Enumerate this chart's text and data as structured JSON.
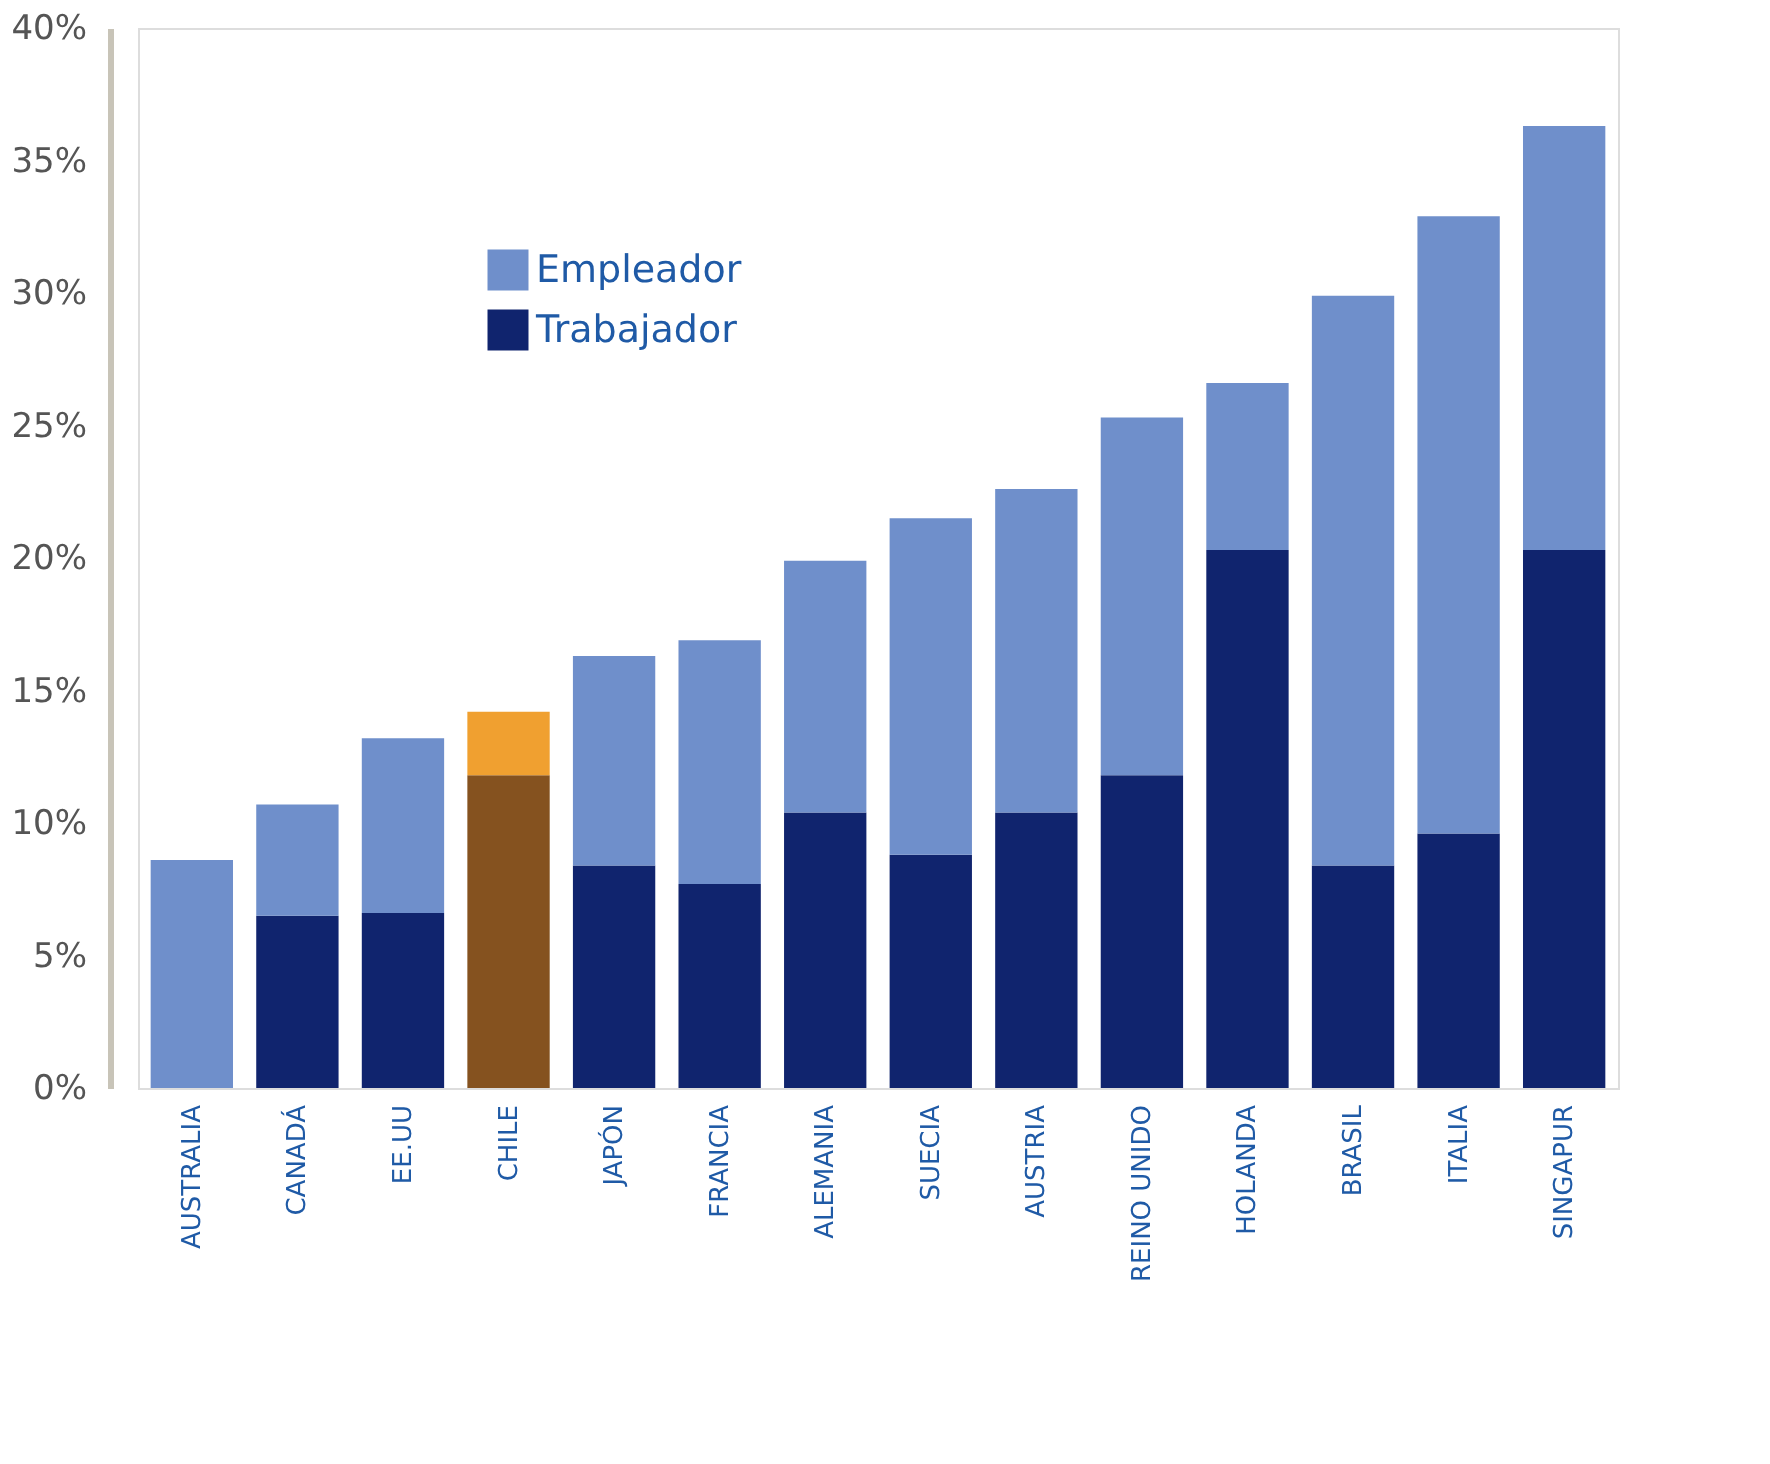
{
  "chart_data": {
    "type": "bar",
    "stacked": true,
    "categories": [
      "AUSTRALIA",
      "CANADÁ",
      "EE.UU",
      "CHILE",
      "JAPÓN",
      "FRANCIA",
      "ALEMANIA",
      "SUECIA",
      "AUSTRIA",
      "REINO UNIDO",
      "HOLANDA",
      "BRASIL",
      "ITALIA",
      "SINGAPUR"
    ],
    "series": [
      {
        "name": "Trabajador",
        "color": "#10246e",
        "colors": [
          "#10246e",
          "#10246e",
          "#10246e",
          "#85521f",
          "#10246e",
          "#10246e",
          "#10246e",
          "#10246e",
          "#10246e",
          "#10246e",
          "#10246e",
          "#10246e",
          "#10246e",
          "#10246e"
        ],
        "values": [
          0,
          6.5,
          6.6,
          11.8,
          8.4,
          7.7,
          10.4,
          8.8,
          10.4,
          11.8,
          20.3,
          8.4,
          9.6,
          20.3
        ]
      },
      {
        "name": "Empleador",
        "color": "#6f8fcb",
        "colors": [
          "#6f8fcb",
          "#6f8fcb",
          "#6f8fcb",
          "#f0a030",
          "#6f8fcb",
          "#6f8fcb",
          "#6f8fcb",
          "#6f8fcb",
          "#6f8fcb",
          "#6f8fcb",
          "#6f8fcb",
          "#6f8fcb",
          "#6f8fcb",
          "#6f8fcb"
        ],
        "values": [
          8.6,
          4.2,
          6.6,
          2.4,
          7.9,
          9.2,
          9.5,
          12.7,
          12.2,
          13.5,
          6.3,
          21.5,
          23.3,
          16.0
        ]
      }
    ],
    "ylim": [
      0,
      40
    ],
    "yticks": [
      {
        "value": 0,
        "label": "0%"
      },
      {
        "value": 5,
        "label": "5%"
      },
      {
        "value": 10,
        "label": "10%"
      },
      {
        "value": 15,
        "label": "15%"
      },
      {
        "value": 20,
        "label": "20%"
      },
      {
        "value": 25,
        "label": "25%"
      },
      {
        "value": 30,
        "label": "30%"
      },
      {
        "value": 35,
        "label": "35%"
      },
      {
        "value": 40,
        "label": "40%"
      }
    ],
    "grid": false,
    "legend": "top left"
  }
}
